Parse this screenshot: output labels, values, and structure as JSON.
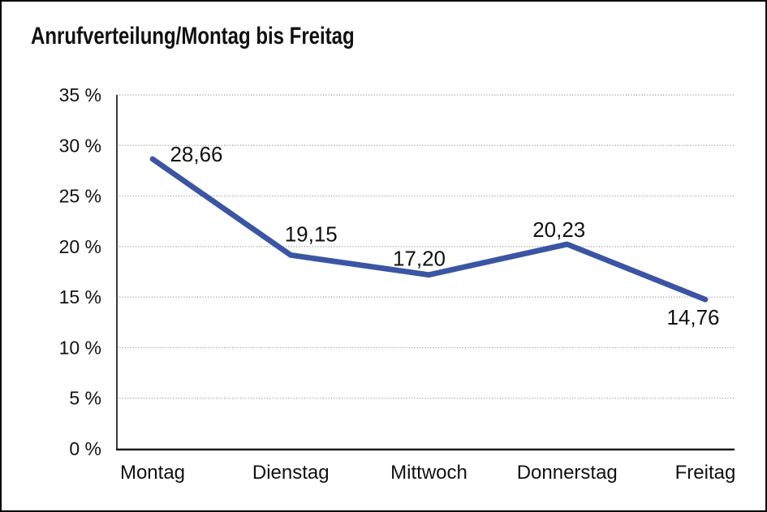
{
  "window": {
    "background_color": "#ffffff",
    "border_color": "#000000"
  },
  "chart_data": {
    "type": "line",
    "title": "Anrufverteilung/Montag bis Freitag",
    "categories": [
      "Montag",
      "Dienstag",
      "Mittwoch",
      "Donnerstag",
      "Freitag"
    ],
    "values": [
      28.66,
      19.15,
      17.2,
      20.23,
      14.76
    ],
    "data_labels": [
      "28,66",
      "19,15",
      "17,20",
      "20,23",
      "14,76"
    ],
    "data_label_positions": [
      "right-of-point",
      "above-point",
      "above-point",
      "above-point",
      "below-point"
    ],
    "y_tick_labels": [
      "0 %",
      "5 %",
      "10 %",
      "15 %",
      "20 %",
      "25 %",
      "30 %",
      "35 %"
    ],
    "ylim": [
      0,
      35
    ],
    "y_tick_step": 5,
    "grid": "horizontal-dotted",
    "legend": false,
    "series_color": "#3A55A3",
    "grid_color": "#8c8c8c",
    "axis_color": "#1a1a1a",
    "text_color": "#111111"
  }
}
